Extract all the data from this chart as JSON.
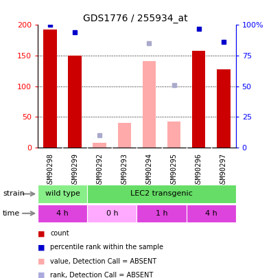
{
  "title": "GDS1776 / 255934_at",
  "samples": [
    "GSM90298",
    "GSM90299",
    "GSM90292",
    "GSM90293",
    "GSM90294",
    "GSM90295",
    "GSM90296",
    "GSM90297"
  ],
  "count_values": [
    193,
    150,
    null,
    null,
    null,
    null,
    158,
    128
  ],
  "absent_value_values": [
    null,
    null,
    8,
    40,
    141,
    42,
    null,
    null
  ],
  "absent_rank_values": [
    null,
    null,
    10,
    null,
    85,
    51,
    null,
    null
  ],
  "percentile_rank": [
    100,
    94,
    null,
    null,
    null,
    null,
    97,
    86
  ],
  "ylim_left": [
    0,
    200
  ],
  "ylim_right": [
    0,
    100
  ],
  "yticks_left": [
    0,
    50,
    100,
    150,
    200
  ],
  "yticks_right": [
    0,
    25,
    50,
    75,
    100
  ],
  "ytick_labels_right": [
    "0",
    "25",
    "50",
    "75",
    "100%"
  ],
  "strain_labels": [
    {
      "text": "wild type",
      "start": 0,
      "end": 2,
      "color": "#88ee88"
    },
    {
      "text": "LEC2 transgenic",
      "start": 2,
      "end": 8,
      "color": "#66dd66"
    }
  ],
  "time_labels": [
    {
      "text": "4 h",
      "start": 0,
      "end": 2,
      "color": "#dd44dd"
    },
    {
      "text": "0 h",
      "start": 2,
      "end": 4,
      "color": "#ffaaff"
    },
    {
      "text": "1 h",
      "start": 4,
      "end": 6,
      "color": "#dd44dd"
    },
    {
      "text": "4 h",
      "start": 6,
      "end": 8,
      "color": "#dd44dd"
    }
  ],
  "legend_items": [
    {
      "label": "count",
      "color": "#cc0000"
    },
    {
      "label": "percentile rank within the sample",
      "color": "#0000cc"
    },
    {
      "label": "value, Detection Call = ABSENT",
      "color": "#ffaaaa"
    },
    {
      "label": "rank, Detection Call = ABSENT",
      "color": "#aaaadd"
    }
  ],
  "bar_width": 0.55,
  "bg_color": "#ffffff",
  "plot_bg_color": "#ffffff",
  "absent_value_color": "#ffaaaa",
  "absent_rank_color": "#aaaacc",
  "count_color": "#cc0000",
  "percentile_color": "#0000cc",
  "xticklabel_bg": "#cccccc",
  "figsize": [
    3.95,
    4.05
  ],
  "dpi": 100
}
